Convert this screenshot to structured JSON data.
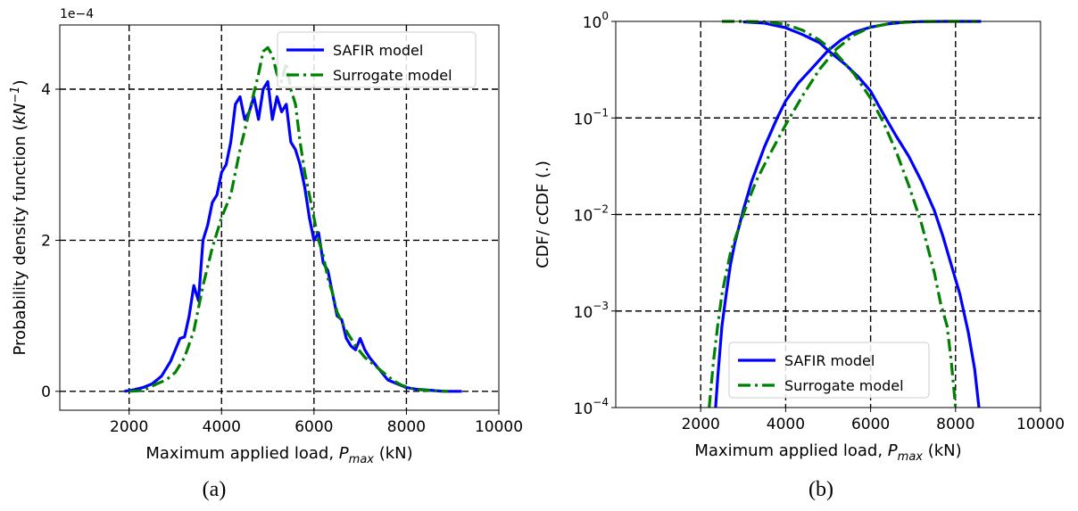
{
  "chart_data": [
    {
      "id": "a",
      "type": "line",
      "caption": "(a)",
      "xlabel_prefix": "Maximum applied load, ",
      "xlabel_var": "P",
      "xlabel_sub": "max",
      "xlabel_unit": " (kN)",
      "ylabel_prefix": "Probability density function (",
      "ylabel_var": "kN",
      "ylabel_sup": "−1",
      "ylabel_suffix": ")",
      "y_offset_label": "1e−4",
      "xlim": [
        500,
        10000
      ],
      "ylim": [
        -0.25,
        4.85
      ],
      "xticks": [
        2000,
        4000,
        6000,
        8000,
        10000
      ],
      "xtick_labels": [
        "2000",
        "4000",
        "6000",
        "8000",
        "10000"
      ],
      "yticks": [
        0,
        2,
        4
      ],
      "ytick_labels": [
        "0",
        "2",
        "4"
      ],
      "grid": true,
      "legend_position": "upper right",
      "series": [
        {
          "name": "SAFIR model",
          "color": "#0000ff",
          "style": "solid",
          "x": [
            1900,
            2100,
            2300,
            2500,
            2700,
            2900,
            3100,
            3200,
            3300,
            3400,
            3500,
            3600,
            3700,
            3800,
            3900,
            4000,
            4100,
            4200,
            4300,
            4400,
            4500,
            4600,
            4700,
            4800,
            4900,
            5000,
            5100,
            5200,
            5300,
            5400,
            5500,
            5600,
            5700,
            5800,
            5900,
            6000,
            6100,
            6200,
            6300,
            6400,
            6500,
            6600,
            6700,
            6800,
            6900,
            7000,
            7100,
            7200,
            7400,
            7600,
            7800,
            8000,
            8200,
            8400,
            8600,
            8800,
            9000,
            9200
          ],
          "y": [
            0.0,
            0.02,
            0.05,
            0.1,
            0.2,
            0.4,
            0.7,
            0.72,
            1.0,
            1.4,
            1.2,
            2.0,
            2.2,
            2.5,
            2.6,
            2.9,
            3.0,
            3.3,
            3.8,
            3.9,
            3.6,
            3.7,
            3.9,
            3.6,
            4.0,
            4.1,
            3.6,
            3.9,
            3.7,
            3.8,
            3.3,
            3.2,
            3.0,
            2.7,
            2.3,
            2.0,
            2.1,
            1.7,
            1.6,
            1.3,
            1.0,
            0.95,
            0.7,
            0.6,
            0.55,
            0.7,
            0.55,
            0.45,
            0.3,
            0.15,
            0.1,
            0.05,
            0.03,
            0.02,
            0.01,
            0.0,
            0.0,
            0.0
          ]
        },
        {
          "name": "Surrogate model",
          "color": "#008000",
          "style": "dashdot",
          "x": [
            2000,
            2300,
            2600,
            2800,
            3000,
            3200,
            3400,
            3600,
            3800,
            4000,
            4200,
            4400,
            4600,
            4800,
            4900,
            5000,
            5100,
            5200,
            5300,
            5400,
            5500,
            5600,
            5700,
            5800,
            5900,
            6000,
            6100,
            6200,
            6300,
            6400,
            6500,
            6700,
            6900,
            7100,
            7300,
            7500,
            7700,
            7900,
            8100,
            8300,
            8600,
            8900
          ],
          "y": [
            0.0,
            0.01,
            0.1,
            0.15,
            0.25,
            0.45,
            0.8,
            1.4,
            1.9,
            2.3,
            2.6,
            3.2,
            3.7,
            4.2,
            4.5,
            4.55,
            4.45,
            4.2,
            4.1,
            4.35,
            4.0,
            3.8,
            3.3,
            2.9,
            2.6,
            2.3,
            2.0,
            1.8,
            1.5,
            1.3,
            1.05,
            0.8,
            0.6,
            0.45,
            0.35,
            0.25,
            0.15,
            0.08,
            0.04,
            0.02,
            0.01,
            0.0
          ]
        }
      ]
    },
    {
      "id": "b",
      "type": "line",
      "caption": "(b)",
      "xlabel_prefix": "Maximum applied load, ",
      "xlabel_var": "P",
      "xlabel_sub": "max",
      "xlabel_unit": " (kN)",
      "ylabel": "CDF/ cCDF (.)",
      "y_scale": "log",
      "xlim": [
        0,
        10000
      ],
      "ylim": [
        0.0001,
        1
      ],
      "xticks": [
        2000,
        4000,
        6000,
        8000,
        10000
      ],
      "xtick_labels": [
        "2000",
        "4000",
        "6000",
        "8000",
        "10000"
      ],
      "yticks": [
        0.0001,
        0.001,
        0.01,
        0.1,
        1
      ],
      "ytick_labels": [
        {
          "base": "10",
          "exp": "−4"
        },
        {
          "base": "10",
          "exp": "−3"
        },
        {
          "base": "10",
          "exp": "−2"
        },
        {
          "base": "10",
          "exp": "−1"
        },
        {
          "base": "10",
          "exp": "0"
        }
      ],
      "grid": true,
      "legend_position": "lower center",
      "series": [
        {
          "name": "SAFIR model",
          "color": "#0000ff",
          "style": "solid",
          "curves": [
            {
              "x": [
                2350,
                2400,
                2500,
                2600,
                2700,
                2800,
                3000,
                3200,
                3500,
                3800,
                4000,
                4300,
                4600,
                5000,
                5300,
                5600,
                6000,
                6400,
                6800,
                7200,
                7800,
                8200,
                8600
              ],
              "y": [
                0.0001,
                0.0002,
                0.0007,
                0.0015,
                0.003,
                0.005,
                0.011,
                0.022,
                0.05,
                0.1,
                0.15,
                0.23,
                0.32,
                0.5,
                0.64,
                0.77,
                0.87,
                0.94,
                0.98,
                0.995,
                0.9995,
                1.0,
                1.0
              ]
            },
            {
              "x": [
                3000,
                3500,
                4000,
                4400,
                4800,
                5000,
                5400,
                5700,
                6000,
                6300,
                6600,
                6900,
                7200,
                7500,
                7700,
                7900,
                8100,
                8300,
                8450,
                8550
              ],
              "y": [
                0.99,
                0.96,
                0.86,
                0.73,
                0.6,
                0.5,
                0.36,
                0.27,
                0.19,
                0.11,
                0.065,
                0.04,
                0.022,
                0.011,
                0.006,
                0.003,
                0.0015,
                0.0006,
                0.00025,
                0.0001
              ]
            }
          ]
        },
        {
          "name": "Surrogate model",
          "color": "#008000",
          "style": "dashdot",
          "curves": [
            {
              "x": [
                2200,
                2300,
                2400,
                2500,
                2700,
                3000,
                3300,
                3600,
                4000,
                4400,
                4800,
                5200,
                5600,
                6000,
                6500,
                7000,
                7500,
                8000,
                8500
              ],
              "y": [
                0.0001,
                0.0003,
                0.0007,
                0.0015,
                0.004,
                0.01,
                0.022,
                0.04,
                0.085,
                0.17,
                0.32,
                0.52,
                0.72,
                0.87,
                0.96,
                0.99,
                0.999,
                1.0,
                1.0
              ]
            },
            {
              "x": [
                2500,
                3000,
                3500,
                4000,
                4400,
                4800,
                5200,
                5600,
                6000,
                6300,
                6600,
                6900,
                7200,
                7500,
                7650,
                7800,
                7900,
                8000
              ],
              "y": [
                1.0,
                0.999,
                0.99,
                0.93,
                0.81,
                0.64,
                0.46,
                0.29,
                0.16,
                0.09,
                0.045,
                0.02,
                0.008,
                0.0025,
                0.0012,
                0.0007,
                0.0003,
                0.0001
              ]
            }
          ]
        }
      ]
    }
  ]
}
